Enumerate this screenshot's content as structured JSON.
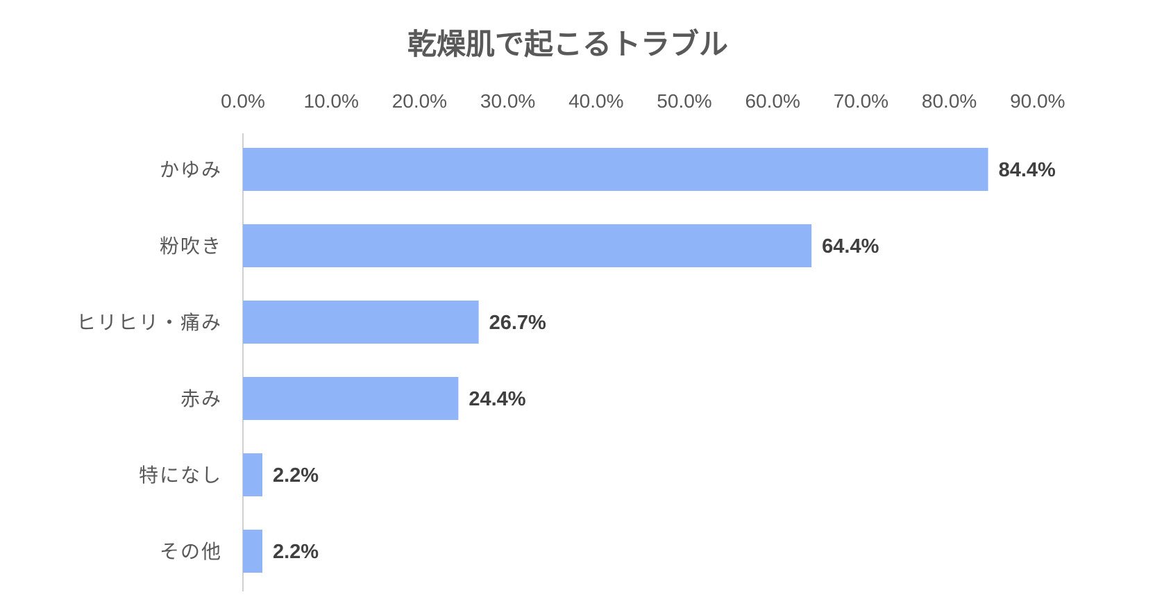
{
  "chart_data": {
    "type": "bar",
    "orientation": "horizontal",
    "title": "乾燥肌で起こるトラブル",
    "categories": [
      "かゆみ",
      "粉吹き",
      "ヒリヒリ・痛み",
      "赤み",
      "特になし",
      "その他"
    ],
    "values": [
      84.4,
      64.4,
      26.7,
      24.4,
      2.2,
      2.2
    ],
    "data_labels": [
      "84.4%",
      "64.4%",
      "26.7%",
      "24.4%",
      "2.2%",
      "2.2%"
    ],
    "x_ticks": [
      "0.0%",
      "10.0%",
      "20.0%",
      "30.0%",
      "40.0%",
      "50.0%",
      "60.0%",
      "70.0%",
      "80.0%",
      "90.0%"
    ],
    "xlim": [
      0,
      90
    ],
    "x_axis_position": "top",
    "grid": false,
    "legend": "none",
    "bar_color": "#8fb4f7"
  }
}
